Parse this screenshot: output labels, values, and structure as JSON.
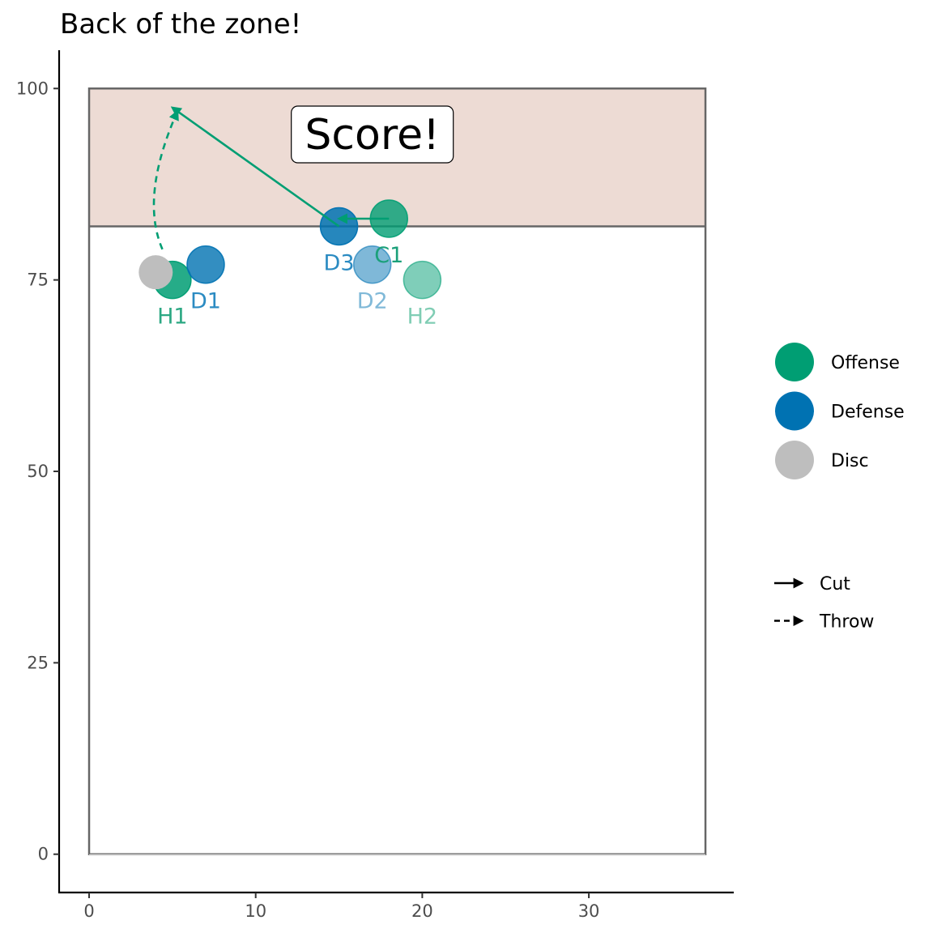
{
  "chart_data": {
    "type": "scatter",
    "title": "Back of the zone!",
    "xlabel": "",
    "ylabel": "",
    "xlim": [
      -1.8,
      38.7
    ],
    "ylim": [
      -5,
      105
    ],
    "x_ticks": [
      0,
      10,
      20,
      30
    ],
    "y_ticks": [
      0,
      25,
      50,
      75,
      100
    ],
    "field": {
      "x": [
        0,
        37
      ],
      "y": [
        0,
        100
      ],
      "endzone_start": 82
    },
    "players": [
      {
        "label": "H1",
        "team": "Offense",
        "x": 5,
        "y": 75,
        "alpha": 0.85,
        "label_color": "#2ca883"
      },
      {
        "label": "H2",
        "team": "Offense",
        "x": 20,
        "y": 75,
        "alpha": 0.5,
        "label_color": "#80cdb4"
      },
      {
        "label": "C1",
        "team": "Offense",
        "x": 18,
        "y": 83,
        "alpha": 0.8,
        "label_color": "#1ba07a"
      },
      {
        "label": "D1",
        "team": "Defense",
        "x": 7,
        "y": 77,
        "alpha": 0.8,
        "label_color": "#2b8bc2"
      },
      {
        "label": "D2",
        "team": "Defense",
        "x": 17,
        "y": 77,
        "alpha": 0.5,
        "label_color": "#80b9d8"
      },
      {
        "label": "D3",
        "team": "Defense",
        "x": 15,
        "y": 82,
        "alpha": 0.85,
        "label_color": "#2b8bc2"
      }
    ],
    "disc": {
      "x": 4,
      "y": 76
    },
    "cuts": [
      {
        "from": [
          18,
          83
        ],
        "to": [
          15,
          83
        ]
      },
      {
        "from": [
          15,
          82
        ],
        "to": [
          5,
          97.5
        ]
      }
    ],
    "throws": [
      {
        "from": [
          4.4,
          79
        ],
        "to": [
          5.3,
          97
        ]
      }
    ],
    "annotation": {
      "text": "Score!",
      "x": 17,
      "y": 94
    },
    "legend": {
      "teams": [
        {
          "name": "Offense",
          "color": "#009E73"
        },
        {
          "name": "Defense",
          "color": "#0072B2"
        },
        {
          "name": "Disc",
          "color": "#BEBEBE"
        }
      ],
      "moves": [
        {
          "name": "Cut",
          "dash": "solid"
        },
        {
          "name": "Throw",
          "dash": "dashed"
        }
      ]
    },
    "colors": {
      "offense": "#009E73",
      "defense": "#0072B2",
      "disc": "#BEBEBE",
      "endzone": "#EDDBD4",
      "field_border": "#666666"
    }
  }
}
